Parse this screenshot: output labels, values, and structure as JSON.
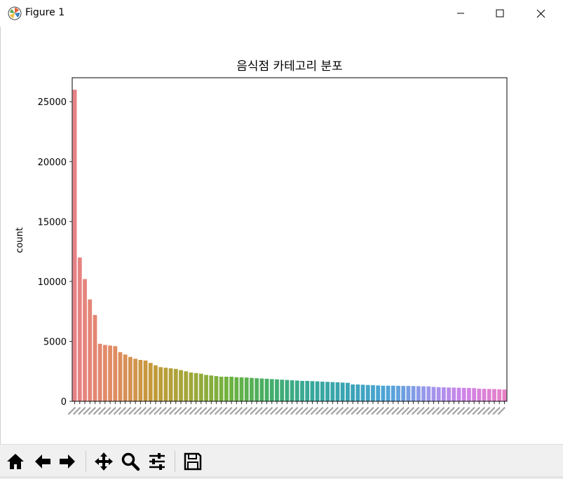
{
  "window": {
    "title": "Figure 1",
    "controls": [
      "minimize",
      "maximize",
      "close"
    ]
  },
  "toolbar": {
    "buttons": [
      {
        "name": "home",
        "icon": "home-icon"
      },
      {
        "name": "back",
        "icon": "arrow-left-icon"
      },
      {
        "name": "forward",
        "icon": "arrow-right-icon"
      },
      {
        "name": "pan",
        "icon": "move-icon"
      },
      {
        "name": "zoom",
        "icon": "magnifier-icon"
      },
      {
        "name": "configure-subplots",
        "icon": "sliders-icon"
      },
      {
        "name": "save",
        "icon": "floppy-disk-icon"
      }
    ]
  },
  "chart_data": {
    "type": "bar",
    "title": "음식점 카테고리 분포",
    "xlabel": "",
    "ylabel": "count",
    "ylim": [
      0,
      27000
    ],
    "yticks": [
      0,
      5000,
      10000,
      15000,
      20000,
      25000
    ],
    "grid": false,
    "legend": "none",
    "categories_note": "86 category bars with overlapping, rotated Korean tick labels (illegible)",
    "values": [
      26000,
      12000,
      10200,
      8500,
      7200,
      4800,
      4700,
      4650,
      4600,
      4100,
      3900,
      3700,
      3550,
      3450,
      3400,
      3200,
      3000,
      2850,
      2800,
      2750,
      2700,
      2600,
      2500,
      2400,
      2350,
      2300,
      2200,
      2150,
      2100,
      2050,
      2050,
      2050,
      2000,
      2000,
      1980,
      1950,
      1920,
      1900,
      1880,
      1850,
      1830,
      1800,
      1780,
      1750,
      1730,
      1700,
      1700,
      1680,
      1660,
      1640,
      1620,
      1600,
      1580,
      1560,
      1540,
      1400,
      1400,
      1380,
      1360,
      1340,
      1320,
      1300,
      1300,
      1300,
      1290,
      1280,
      1280,
      1270,
      1260,
      1250,
      1240,
      1200,
      1180,
      1160,
      1150,
      1140,
      1130,
      1120,
      1110,
      1100,
      1050,
      1040,
      1030,
      1020,
      1000,
      980
    ],
    "palette": [
      "#e78286",
      "#e08c62",
      "#c39a38",
      "#9fa83a",
      "#6cb23f",
      "#43ae6a",
      "#38a899",
      "#3aa4b4",
      "#4ea4d8",
      "#9a98ec",
      "#d084e8",
      "#e77fc6"
    ]
  }
}
